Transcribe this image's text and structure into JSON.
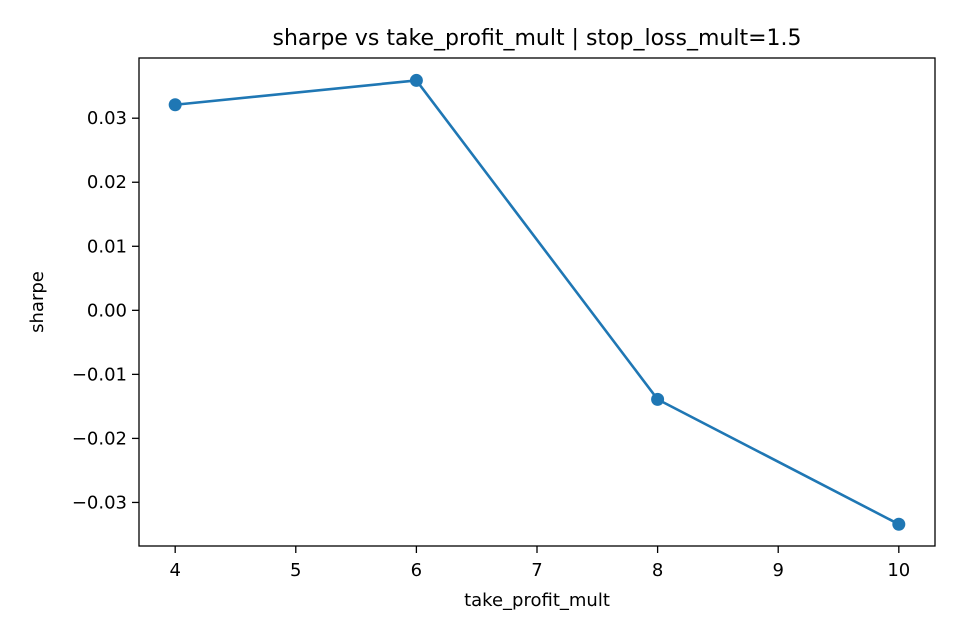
{
  "chart_data": {
    "type": "line",
    "title": "sharpe vs take_profit_mult | stop_loss_mult=1.5",
    "xlabel": "take_profit_mult",
    "ylabel": "sharpe",
    "x": [
      4,
      6,
      8,
      10
    ],
    "series": [
      {
        "values": [
          0.0321,
          0.0359,
          -0.0139,
          -0.0334
        ],
        "color": "#1f77b4",
        "marker": "circle"
      }
    ],
    "xlim": [
      3.7,
      10.3
    ],
    "ylim": [
      -0.0368,
      0.0394
    ],
    "xticks": [
      4,
      5,
      6,
      7,
      8,
      9,
      10
    ],
    "xtick_labels": [
      "4",
      "5",
      "6",
      "7",
      "8",
      "9",
      "10"
    ],
    "yticks": [
      -0.03,
      -0.02,
      -0.01,
      0.0,
      0.01,
      0.02,
      0.03
    ],
    "ytick_labels": [
      "−0.03",
      "−0.02",
      "−0.01",
      "0.00",
      "0.01",
      "0.02",
      "0.03"
    ],
    "grid": false,
    "legend": false
  }
}
